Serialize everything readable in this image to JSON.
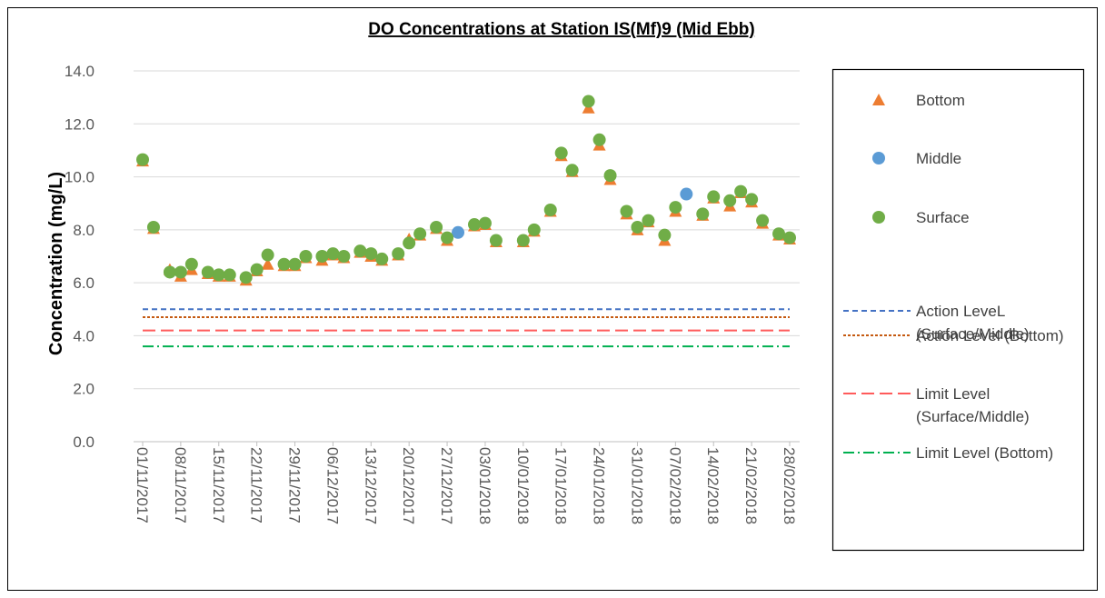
{
  "chart_data": {
    "type": "scatter",
    "title": "DO Concentrations at Station IS(Mf)9 (Mid Ebb)",
    "y_label": "Concentration (mg/L)",
    "x": [
      "01/11/2017",
      "03/11/2017",
      "06/11/2017",
      "08/11/2017",
      "10/11/2017",
      "13/11/2017",
      "15/11/2017",
      "17/11/2017",
      "20/11/2017",
      "22/11/2017",
      "24/11/2017",
      "27/11/2017",
      "29/11/2017",
      "01/12/2017",
      "04/12/2017",
      "06/12/2017",
      "08/12/2017",
      "11/12/2017",
      "13/12/2017",
      "15/12/2017",
      "18/12/2017",
      "20/12/2017",
      "22/12/2017",
      "25/12/2017",
      "27/12/2017",
      "29/12/2017",
      "01/01/2018",
      "03/01/2018",
      "05/01/2018",
      "10/01/2018",
      "12/01/2018",
      "15/01/2018",
      "17/01/2018",
      "19/01/2018",
      "22/01/2018",
      "24/01/2018",
      "26/01/2018",
      "29/01/2018",
      "31/01/2018",
      "02/02/2018",
      "05/02/2018",
      "07/02/2018",
      "09/02/2018",
      "12/02/2018",
      "14/02/2018",
      "17/02/2018",
      "19/02/2018",
      "21/02/2018",
      "23/02/2018",
      "26/02/2018",
      "28/02/2018"
    ],
    "series": [
      {
        "name": "Bottom",
        "color": "#ed7d31",
        "marker": "triangle",
        "values": [
          10.6,
          8.05,
          6.5,
          6.25,
          6.5,
          6.35,
          6.25,
          6.25,
          6.1,
          6.45,
          6.7,
          6.65,
          6.65,
          6.95,
          6.85,
          7.05,
          6.95,
          7.15,
          7.0,
          6.85,
          7.05,
          7.65,
          7.8,
          8.05,
          7.6,
          null,
          8.15,
          8.2,
          7.55,
          7.55,
          7.95,
          8.7,
          10.8,
          10.2,
          12.6,
          11.2,
          9.9,
          8.6,
          8.0,
          8.3,
          7.6,
          8.7,
          null,
          8.55,
          9.2,
          8.9,
          9.4,
          9.05,
          8.25,
          7.8,
          7.65
        ]
      },
      {
        "name": "Middle",
        "color": "#5b9bd5",
        "marker": "circle",
        "values": [
          null,
          null,
          null,
          null,
          null,
          null,
          null,
          null,
          null,
          null,
          null,
          null,
          null,
          null,
          null,
          null,
          null,
          null,
          null,
          null,
          null,
          null,
          null,
          null,
          null,
          7.9,
          null,
          null,
          null,
          null,
          null,
          null,
          null,
          null,
          null,
          null,
          null,
          null,
          null,
          null,
          null,
          null,
          9.35,
          null,
          null,
          null,
          null,
          null,
          null,
          null,
          null
        ]
      },
      {
        "name": "Surface",
        "color": "#70ad47",
        "marker": "circle",
        "values": [
          10.65,
          8.1,
          6.4,
          6.4,
          6.7,
          6.4,
          6.3,
          6.3,
          6.2,
          6.5,
          7.05,
          6.7,
          6.7,
          7.0,
          7.0,
          7.1,
          7.0,
          7.2,
          7.1,
          6.9,
          7.1,
          7.5,
          7.85,
          8.1,
          7.7,
          null,
          8.2,
          8.25,
          7.6,
          7.6,
          8.0,
          8.75,
          10.9,
          10.25,
          12.85,
          11.4,
          10.05,
          8.7,
          8.1,
          8.35,
          7.8,
          8.85,
          null,
          8.6,
          9.25,
          9.1,
          9.45,
          9.15,
          8.35,
          7.85,
          7.7
        ]
      }
    ],
    "level_lines": [
      {
        "name": "Action LeveL (Surface/Middle)",
        "value": 5.0,
        "color": "#4472c4",
        "dash": "6 4"
      },
      {
        "name": "Action Level (Bottom)",
        "value": 4.7,
        "color": "#c55a11",
        "dash": "3 2"
      },
      {
        "name": "Limit Level (Surface/Middle)",
        "value": 4.2,
        "color": "#ff5b5b",
        "dash": "14 6"
      },
      {
        "name": "Limit Level (Bottom)",
        "value": 3.6,
        "color": "#00b050",
        "dash": "12 4 2 4"
      }
    ],
    "xlim": [
      "01/11/2017",
      "28/02/2018"
    ],
    "xticks": [
      "01/11/2017",
      "08/11/2017",
      "15/11/2017",
      "22/11/2017",
      "29/11/2017",
      "06/12/2017",
      "13/12/2017",
      "20/12/2017",
      "27/12/2017",
      "03/01/2018",
      "10/01/2018",
      "17/01/2018",
      "24/01/2018",
      "31/01/2018",
      "07/02/2018",
      "14/02/2018",
      "21/02/2018",
      "28/02/2018"
    ],
    "ylim": [
      0,
      14
    ],
    "yticks": [
      {
        "value": 0,
        "label": "0.0"
      },
      {
        "value": 2,
        "label": "2.0"
      },
      {
        "value": 4,
        "label": "4.0"
      },
      {
        "value": 6,
        "label": "6.0"
      },
      {
        "value": 8,
        "label": "8.0"
      },
      {
        "value": 10,
        "label": "10.0"
      },
      {
        "value": 12,
        "label": "12.0"
      },
      {
        "value": 14,
        "label": "14.0"
      }
    ],
    "grid": true,
    "legend": "right"
  }
}
